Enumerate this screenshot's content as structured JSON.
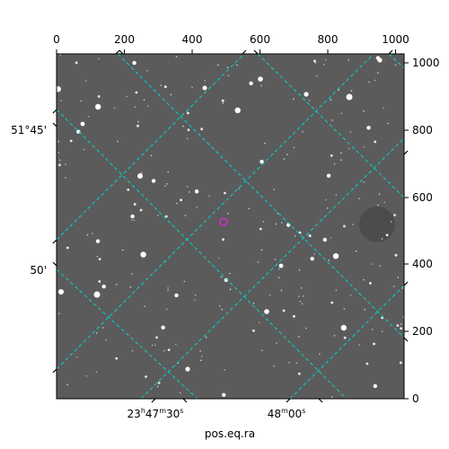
{
  "figure": {
    "xlabel": "pos.eq.ra",
    "pixel_x_ticks": [
      "0",
      "200",
      "400",
      "600",
      "800",
      "1000"
    ],
    "pixel_y_ticks": [
      "0",
      "200",
      "400",
      "600",
      "800",
      "1000"
    ],
    "ra_ticks": [
      {
        "hours": "23",
        "h": "h",
        "minutes": "47",
        "m": "m",
        "seconds": "30",
        "s": "s"
      },
      {
        "hours": "",
        "h": "",
        "minutes": "48",
        "m": "m",
        "seconds": "00",
        "s": "s"
      }
    ],
    "dec_ticks": [
      "51°45'",
      "50'"
    ],
    "colors": {
      "background": "#595959",
      "grid": "#00d5d5",
      "marker": "#d62ad6",
      "frame": "#000000"
    }
  }
}
